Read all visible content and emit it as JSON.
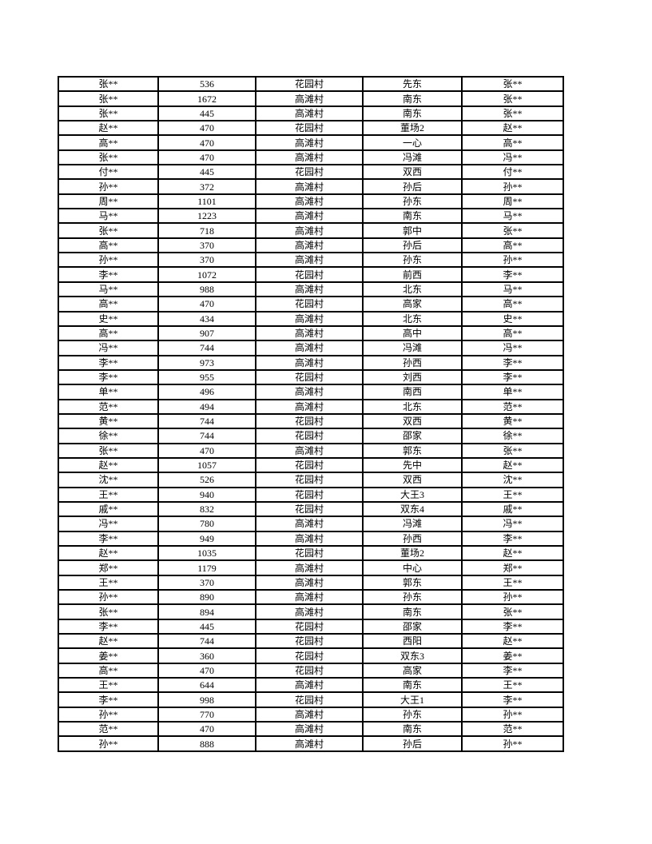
{
  "page": {
    "background": "#ffffff",
    "text_color": "#000000",
    "border_color": "#000000"
  },
  "table": {
    "columns": [
      "masked-name",
      "value",
      "village",
      "location",
      "masked-name-2"
    ],
    "rows": [
      [
        "张**",
        "536",
        "花园村",
        "先东",
        "张**"
      ],
      [
        "张**",
        "1672",
        "高滩村",
        "南东",
        "张**"
      ],
      [
        "张**",
        "445",
        "高滩村",
        "南东",
        "张**"
      ],
      [
        "赵**",
        "470",
        "花园村",
        "董场2",
        "赵**"
      ],
      [
        "高**",
        "470",
        "高滩村",
        "一心",
        "高**"
      ],
      [
        "张**",
        "470",
        "高滩村",
        "冯滩",
        "冯**"
      ],
      [
        "付**",
        "445",
        "花园村",
        "双西",
        "付**"
      ],
      [
        "孙**",
        "372",
        "高滩村",
        "孙后",
        "孙**"
      ],
      [
        "周**",
        "1101",
        "高滩村",
        "孙东",
        "周**"
      ],
      [
        "马**",
        "1223",
        "高滩村",
        "南东",
        "马**"
      ],
      [
        "张**",
        "718",
        "高滩村",
        "郭中",
        "张**"
      ],
      [
        "高**",
        "370",
        "高滩村",
        "孙后",
        "高**"
      ],
      [
        "孙**",
        "370",
        "高滩村",
        "孙东",
        "孙**"
      ],
      [
        "李**",
        "1072",
        "花园村",
        "前西",
        "李**"
      ],
      [
        "马**",
        "988",
        "高滩村",
        "北东",
        "马**"
      ],
      [
        "高**",
        "470",
        "花园村",
        "高家",
        "高**"
      ],
      [
        "史**",
        "434",
        "高滩村",
        "北东",
        "史**"
      ],
      [
        "高**",
        "907",
        "高滩村",
        "高中",
        "高**"
      ],
      [
        "冯**",
        "744",
        "高滩村",
        "冯滩",
        "冯**"
      ],
      [
        "李**",
        "973",
        "高滩村",
        "孙西",
        "李**"
      ],
      [
        "李**",
        "955",
        "花园村",
        "刘西",
        "李**"
      ],
      [
        "单**",
        "496",
        "高滩村",
        "南西",
        "单**"
      ],
      [
        "范**",
        "494",
        "高滩村",
        "北东",
        "范**"
      ],
      [
        "黄**",
        "744",
        "花园村",
        "双西",
        "黄**"
      ],
      [
        "徐**",
        "744",
        "花园村",
        "邵家",
        "徐**"
      ],
      [
        "张**",
        "470",
        "高滩村",
        "郭东",
        "张**"
      ],
      [
        "赵**",
        "1057",
        "花园村",
        "先中",
        "赵**"
      ],
      [
        "沈**",
        "526",
        "花园村",
        "双西",
        "沈**"
      ],
      [
        "王**",
        "940",
        "花园村",
        "大王3",
        "王**"
      ],
      [
        "戚**",
        "832",
        "花园村",
        "双东4",
        "戚**"
      ],
      [
        "冯**",
        "780",
        "高滩村",
        "冯滩",
        "冯**"
      ],
      [
        "李**",
        "949",
        "高滩村",
        "孙西",
        "李**"
      ],
      [
        "赵**",
        "1035",
        "花园村",
        "董场2",
        "赵**"
      ],
      [
        "郑**",
        "1179",
        "高滩村",
        "中心",
        "郑**"
      ],
      [
        "王**",
        "370",
        "高滩村",
        "郭东",
        "王**"
      ],
      [
        "孙**",
        "890",
        "高滩村",
        "孙东",
        "孙**"
      ],
      [
        "张**",
        "894",
        "高滩村",
        "南东",
        "张**"
      ],
      [
        "李**",
        "445",
        "花园村",
        "邵家",
        "李**"
      ],
      [
        "赵**",
        "744",
        "花园村",
        "西阳",
        "赵**"
      ],
      [
        "姜**",
        "360",
        "花园村",
        "双东3",
        "姜**"
      ],
      [
        "高**",
        "470",
        "花园村",
        "高家",
        "李**"
      ],
      [
        "王**",
        "644",
        "高滩村",
        "南东",
        "王**"
      ],
      [
        "李**",
        "998",
        "花园村",
        "大王1",
        "李**"
      ],
      [
        "孙**",
        "770",
        "高滩村",
        "孙东",
        "孙**"
      ],
      [
        "范**",
        "470",
        "高滩村",
        "南东",
        "范**"
      ],
      [
        "孙**",
        "888",
        "高滩村",
        "孙后",
        "孙**"
      ]
    ]
  }
}
